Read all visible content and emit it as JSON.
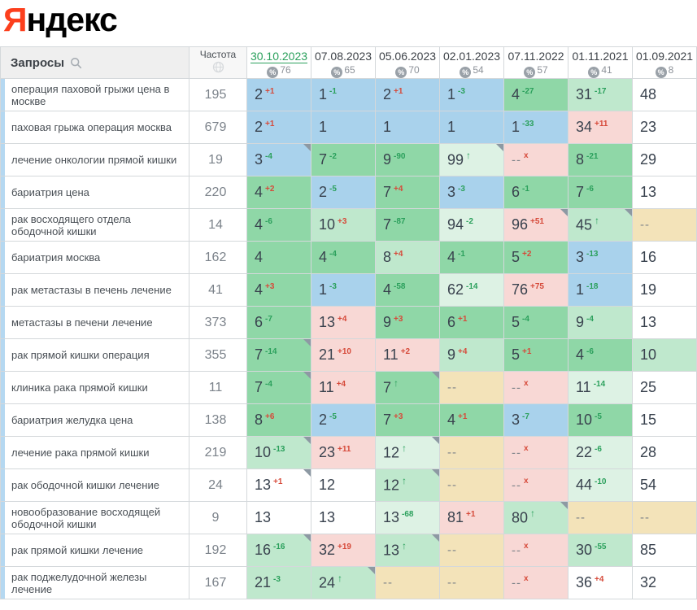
{
  "logo": {
    "first_letter": "Я",
    "rest": "ндекс"
  },
  "colors": {
    "accent_green": "#2ba05c",
    "delta_red": "#d64a3a",
    "delta_green": "#2ba05c",
    "cell_bg": {
      "blue": "#a9d2ec",
      "green": "#8fd7a7",
      "green_light": "#bfe8cd",
      "green_pale": "#ddf2e4",
      "pink": "#f8d8d5",
      "beige": "#f3e3b9",
      "white": "#ffffff"
    }
  },
  "table": {
    "queries_header": "Запросы",
    "frequency_header": "Частота",
    "date_columns": [
      {
        "date": "30.10.2023",
        "percent": "76",
        "current": true
      },
      {
        "date": "07.08.2023",
        "percent": "65",
        "current": false
      },
      {
        "date": "05.06.2023",
        "percent": "70",
        "current": false
      },
      {
        "date": "02.01.2023",
        "percent": "54",
        "current": false
      },
      {
        "date": "07.11.2022",
        "percent": "57",
        "current": false
      },
      {
        "date": "01.11.2021",
        "percent": "41",
        "current": false
      },
      {
        "date": "01.09.2021",
        "percent": "8",
        "current": false
      }
    ],
    "rows": [
      {
        "query": "операция паховой грыжи цена в москве",
        "frequency": "195",
        "cells": [
          {
            "v": "2",
            "d": "+1",
            "dc": "red",
            "bg": "blue"
          },
          {
            "v": "1",
            "d": "-1",
            "dc": "green",
            "bg": "blue"
          },
          {
            "v": "2",
            "d": "+1",
            "dc": "red",
            "bg": "blue"
          },
          {
            "v": "1",
            "d": "-3",
            "dc": "green",
            "bg": "blue"
          },
          {
            "v": "4",
            "d": "-27",
            "dc": "green",
            "bg": "green"
          },
          {
            "v": "31",
            "d": "-17",
            "dc": "green",
            "bg": "green_light"
          },
          {
            "v": "48",
            "bg": "white"
          }
        ]
      },
      {
        "query": "паховая грыжа операция москва",
        "frequency": "679",
        "cells": [
          {
            "v": "2",
            "d": "+1",
            "dc": "red",
            "bg": "blue"
          },
          {
            "v": "1",
            "bg": "blue"
          },
          {
            "v": "1",
            "bg": "blue"
          },
          {
            "v": "1",
            "bg": "blue"
          },
          {
            "v": "1",
            "d": "-33",
            "dc": "green",
            "bg": "blue"
          },
          {
            "v": "34",
            "d": "+11",
            "dc": "red",
            "bg": "pink"
          },
          {
            "v": "23",
            "bg": "white"
          }
        ]
      },
      {
        "query": "лечение онкологии прямой кишки",
        "frequency": "19",
        "cells": [
          {
            "v": "3",
            "d": "-4",
            "dc": "green",
            "bg": "blue",
            "flag": true
          },
          {
            "v": "7",
            "d": "-2",
            "dc": "green",
            "bg": "green"
          },
          {
            "v": "9",
            "d": "-90",
            "dc": "green",
            "bg": "green"
          },
          {
            "v": "99",
            "d": "↑",
            "dc": "green",
            "arrow": true,
            "bg": "green_pale",
            "flag": true
          },
          {
            "v": "--",
            "d": "x",
            "dc": "red",
            "bg": "pink"
          },
          {
            "v": "8",
            "d": "-21",
            "dc": "green",
            "bg": "green"
          },
          {
            "v": "29",
            "bg": "white"
          }
        ]
      },
      {
        "query": "бариатрия цена",
        "frequency": "220",
        "cells": [
          {
            "v": "4",
            "d": "+2",
            "dc": "red",
            "bg": "green"
          },
          {
            "v": "2",
            "d": "-5",
            "dc": "green",
            "bg": "blue"
          },
          {
            "v": "7",
            "d": "+4",
            "dc": "red",
            "bg": "green"
          },
          {
            "v": "3",
            "d": "-3",
            "dc": "green",
            "bg": "blue"
          },
          {
            "v": "6",
            "d": "-1",
            "dc": "green",
            "bg": "green"
          },
          {
            "v": "7",
            "d": "-6",
            "dc": "green",
            "bg": "green"
          },
          {
            "v": "13",
            "bg": "white"
          }
        ]
      },
      {
        "query": "рак восходящего отдела ободочной кишки",
        "frequency": "14",
        "cells": [
          {
            "v": "4",
            "d": "-6",
            "dc": "green",
            "bg": "green"
          },
          {
            "v": "10",
            "d": "+3",
            "dc": "red",
            "bg": "green_light"
          },
          {
            "v": "7",
            "d": "-87",
            "dc": "green",
            "bg": "green"
          },
          {
            "v": "94",
            "d": "-2",
            "dc": "green",
            "bg": "green_pale"
          },
          {
            "v": "96",
            "d": "+51",
            "dc": "red",
            "bg": "pink",
            "flag": true
          },
          {
            "v": "45",
            "d": "↑",
            "dc": "green",
            "arrow": true,
            "bg": "green_light",
            "flag": true
          },
          {
            "v": "--",
            "bg": "beige"
          }
        ]
      },
      {
        "query": "бариатрия москва",
        "frequency": "162",
        "cells": [
          {
            "v": "4",
            "bg": "green"
          },
          {
            "v": "4",
            "d": "-4",
            "dc": "green",
            "bg": "green"
          },
          {
            "v": "8",
            "d": "+4",
            "dc": "red",
            "bg": "green_light"
          },
          {
            "v": "4",
            "d": "-1",
            "dc": "green",
            "bg": "green"
          },
          {
            "v": "5",
            "d": "+2",
            "dc": "red",
            "bg": "green"
          },
          {
            "v": "3",
            "d": "-13",
            "dc": "green",
            "bg": "blue"
          },
          {
            "v": "16",
            "bg": "white"
          }
        ]
      },
      {
        "query": "рак метастазы в печень лечение",
        "frequency": "41",
        "cells": [
          {
            "v": "4",
            "d": "+3",
            "dc": "red",
            "bg": "green"
          },
          {
            "v": "1",
            "d": "-3",
            "dc": "green",
            "bg": "blue"
          },
          {
            "v": "4",
            "d": "-58",
            "dc": "green",
            "bg": "green"
          },
          {
            "v": "62",
            "d": "-14",
            "dc": "green",
            "bg": "green_pale"
          },
          {
            "v": "76",
            "d": "+75",
            "dc": "red",
            "bg": "pink"
          },
          {
            "v": "1",
            "d": "-18",
            "dc": "green",
            "bg": "blue"
          },
          {
            "v": "19",
            "bg": "white"
          }
        ]
      },
      {
        "query": "метастазы в печени лечение",
        "frequency": "373",
        "cells": [
          {
            "v": "6",
            "d": "-7",
            "dc": "green",
            "bg": "green"
          },
          {
            "v": "13",
            "d": "+4",
            "dc": "red",
            "bg": "pink"
          },
          {
            "v": "9",
            "d": "+3",
            "dc": "red",
            "bg": "green"
          },
          {
            "v": "6",
            "d": "+1",
            "dc": "red",
            "bg": "green"
          },
          {
            "v": "5",
            "d": "-4",
            "dc": "green",
            "bg": "green"
          },
          {
            "v": "9",
            "d": "-4",
            "dc": "green",
            "bg": "green_light"
          },
          {
            "v": "13",
            "bg": "white"
          }
        ]
      },
      {
        "query": "рак прямой кишки операция",
        "frequency": "355",
        "cells": [
          {
            "v": "7",
            "d": "-14",
            "dc": "green",
            "bg": "green",
            "flag": true
          },
          {
            "v": "21",
            "d": "+10",
            "dc": "red",
            "bg": "pink"
          },
          {
            "v": "11",
            "d": "+2",
            "dc": "red",
            "bg": "pink"
          },
          {
            "v": "9",
            "d": "+4",
            "dc": "red",
            "bg": "green_light"
          },
          {
            "v": "5",
            "d": "+1",
            "dc": "red",
            "bg": "green"
          },
          {
            "v": "4",
            "d": "-6",
            "dc": "green",
            "bg": "green"
          },
          {
            "v": "10",
            "bg": "green_light"
          }
        ]
      },
      {
        "query": "клиника рака прямой кишки",
        "frequency": "11",
        "cells": [
          {
            "v": "7",
            "d": "-4",
            "dc": "green",
            "bg": "green",
            "flag": true
          },
          {
            "v": "11",
            "d": "+4",
            "dc": "red",
            "bg": "pink"
          },
          {
            "v": "7",
            "d": "↑",
            "dc": "green",
            "arrow": true,
            "bg": "green",
            "flag": true
          },
          {
            "v": "--",
            "bg": "beige"
          },
          {
            "v": "--",
            "d": "x",
            "dc": "red",
            "bg": "pink"
          },
          {
            "v": "11",
            "d": "-14",
            "dc": "green",
            "bg": "green_pale"
          },
          {
            "v": "25",
            "bg": "white"
          }
        ]
      },
      {
        "query": "бариатрия желудка цена",
        "frequency": "138",
        "cells": [
          {
            "v": "8",
            "d": "+6",
            "dc": "red",
            "bg": "green"
          },
          {
            "v": "2",
            "d": "-5",
            "dc": "green",
            "bg": "blue"
          },
          {
            "v": "7",
            "d": "+3",
            "dc": "red",
            "bg": "green"
          },
          {
            "v": "4",
            "d": "+1",
            "dc": "red",
            "bg": "green"
          },
          {
            "v": "3",
            "d": "-7",
            "dc": "green",
            "bg": "blue"
          },
          {
            "v": "10",
            "d": "-5",
            "dc": "green",
            "bg": "green"
          },
          {
            "v": "15",
            "bg": "white"
          }
        ]
      },
      {
        "query": "лечение рака прямой кишки",
        "frequency": "219",
        "cells": [
          {
            "v": "10",
            "d": "-13",
            "dc": "green",
            "bg": "green_light",
            "flag": true
          },
          {
            "v": "23",
            "d": "+11",
            "dc": "red",
            "bg": "pink"
          },
          {
            "v": "12",
            "d": "↑",
            "dc": "green",
            "arrow": true,
            "bg": "green_pale",
            "flag": true
          },
          {
            "v": "--",
            "bg": "beige"
          },
          {
            "v": "--",
            "d": "x",
            "dc": "red",
            "bg": "pink"
          },
          {
            "v": "22",
            "d": "-6",
            "dc": "green",
            "bg": "green_pale"
          },
          {
            "v": "28",
            "bg": "white"
          }
        ]
      },
      {
        "query": "рак ободочной кишки лечение",
        "frequency": "24",
        "cells": [
          {
            "v": "13",
            "d": "+1",
            "dc": "red",
            "bg": "white",
            "flag": true
          },
          {
            "v": "12",
            "bg": "white"
          },
          {
            "v": "12",
            "d": "↑",
            "dc": "green",
            "arrow": true,
            "bg": "green_light",
            "flag": true
          },
          {
            "v": "--",
            "bg": "beige"
          },
          {
            "v": "--",
            "d": "x",
            "dc": "red",
            "bg": "pink"
          },
          {
            "v": "44",
            "d": "-10",
            "dc": "green",
            "bg": "green_pale"
          },
          {
            "v": "54",
            "bg": "white"
          }
        ]
      },
      {
        "query": "новообразование восходящей ободочной кишки",
        "frequency": "9",
        "cells": [
          {
            "v": "13",
            "bg": "white"
          },
          {
            "v": "13",
            "bg": "white"
          },
          {
            "v": "13",
            "d": "-68",
            "dc": "green",
            "bg": "green_pale"
          },
          {
            "v": "81",
            "d": "+1",
            "dc": "red",
            "bg": "pink"
          },
          {
            "v": "80",
            "d": "↑",
            "dc": "green",
            "arrow": true,
            "bg": "green_light",
            "flag": true
          },
          {
            "v": "--",
            "bg": "beige"
          },
          {
            "v": "--",
            "bg": "beige"
          }
        ]
      },
      {
        "query": "рак прямой кишки лечение",
        "frequency": "192",
        "cells": [
          {
            "v": "16",
            "d": "-16",
            "dc": "green",
            "bg": "green_light",
            "flag": true
          },
          {
            "v": "32",
            "d": "+19",
            "dc": "red",
            "bg": "pink"
          },
          {
            "v": "13",
            "d": "↑",
            "dc": "green",
            "arrow": true,
            "bg": "green_light",
            "flag": true
          },
          {
            "v": "--",
            "bg": "beige"
          },
          {
            "v": "--",
            "d": "x",
            "dc": "red",
            "bg": "pink"
          },
          {
            "v": "30",
            "d": "-55",
            "dc": "green",
            "bg": "green_light"
          },
          {
            "v": "85",
            "bg": "white"
          }
        ]
      },
      {
        "query": "рак поджелудочной железы лечение",
        "frequency": "167",
        "cells": [
          {
            "v": "21",
            "d": "-3",
            "dc": "green",
            "bg": "green_light"
          },
          {
            "v": "24",
            "d": "↑",
            "dc": "green",
            "arrow": true,
            "bg": "green_light",
            "flag": true
          },
          {
            "v": "--",
            "bg": "beige"
          },
          {
            "v": "--",
            "bg": "beige"
          },
          {
            "v": "--",
            "d": "x",
            "dc": "red",
            "bg": "pink"
          },
          {
            "v": "36",
            "d": "+4",
            "dc": "red",
            "bg": "white"
          },
          {
            "v": "32",
            "bg": "white"
          }
        ]
      }
    ]
  }
}
